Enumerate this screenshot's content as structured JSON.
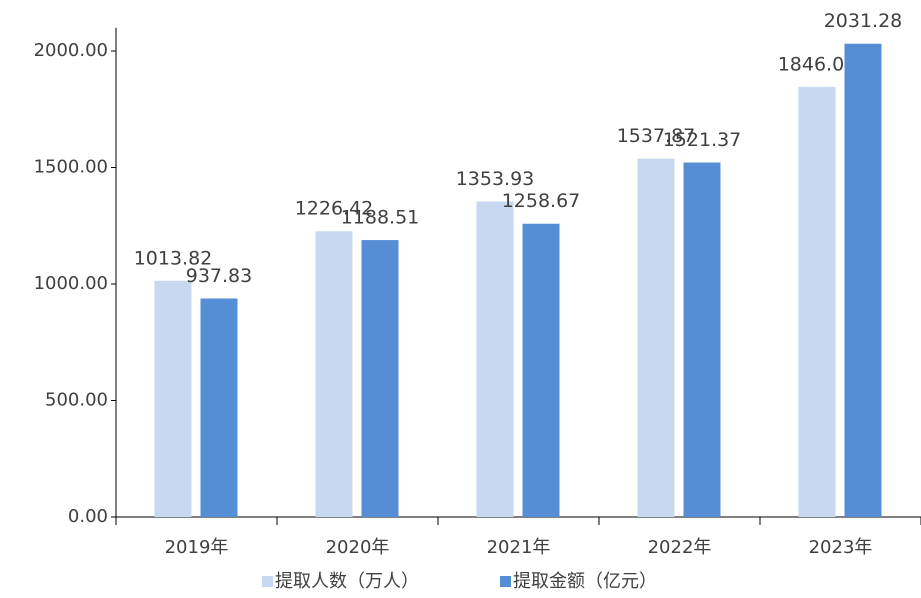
{
  "chart_data": {
    "type": "bar",
    "categories": [
      "2019年",
      "2020年",
      "2021年",
      "2022年",
      "2023年"
    ],
    "series": [
      {
        "name": "提取人数（万人）",
        "color": "#c6d9f1",
        "values": [
          1013.82,
          1226.42,
          1353.93,
          1537.87,
          1846.09
        ]
      },
      {
        "name": "提取金额（亿元）",
        "color": "#558ed5",
        "values": [
          937.83,
          1188.51,
          1258.67,
          1521.37,
          2031.28
        ]
      }
    ],
    "ylim": [
      0,
      2100
    ],
    "yticks": [
      {
        "value": 0,
        "label": "0.00"
      },
      {
        "value": 500,
        "label": "500.00"
      },
      {
        "value": 1000,
        "label": "1000.00"
      },
      {
        "value": 1500,
        "label": "1500.00"
      },
      {
        "value": 2000,
        "label": "2000.00"
      }
    ],
    "grid": false,
    "legend": "bottom"
  }
}
